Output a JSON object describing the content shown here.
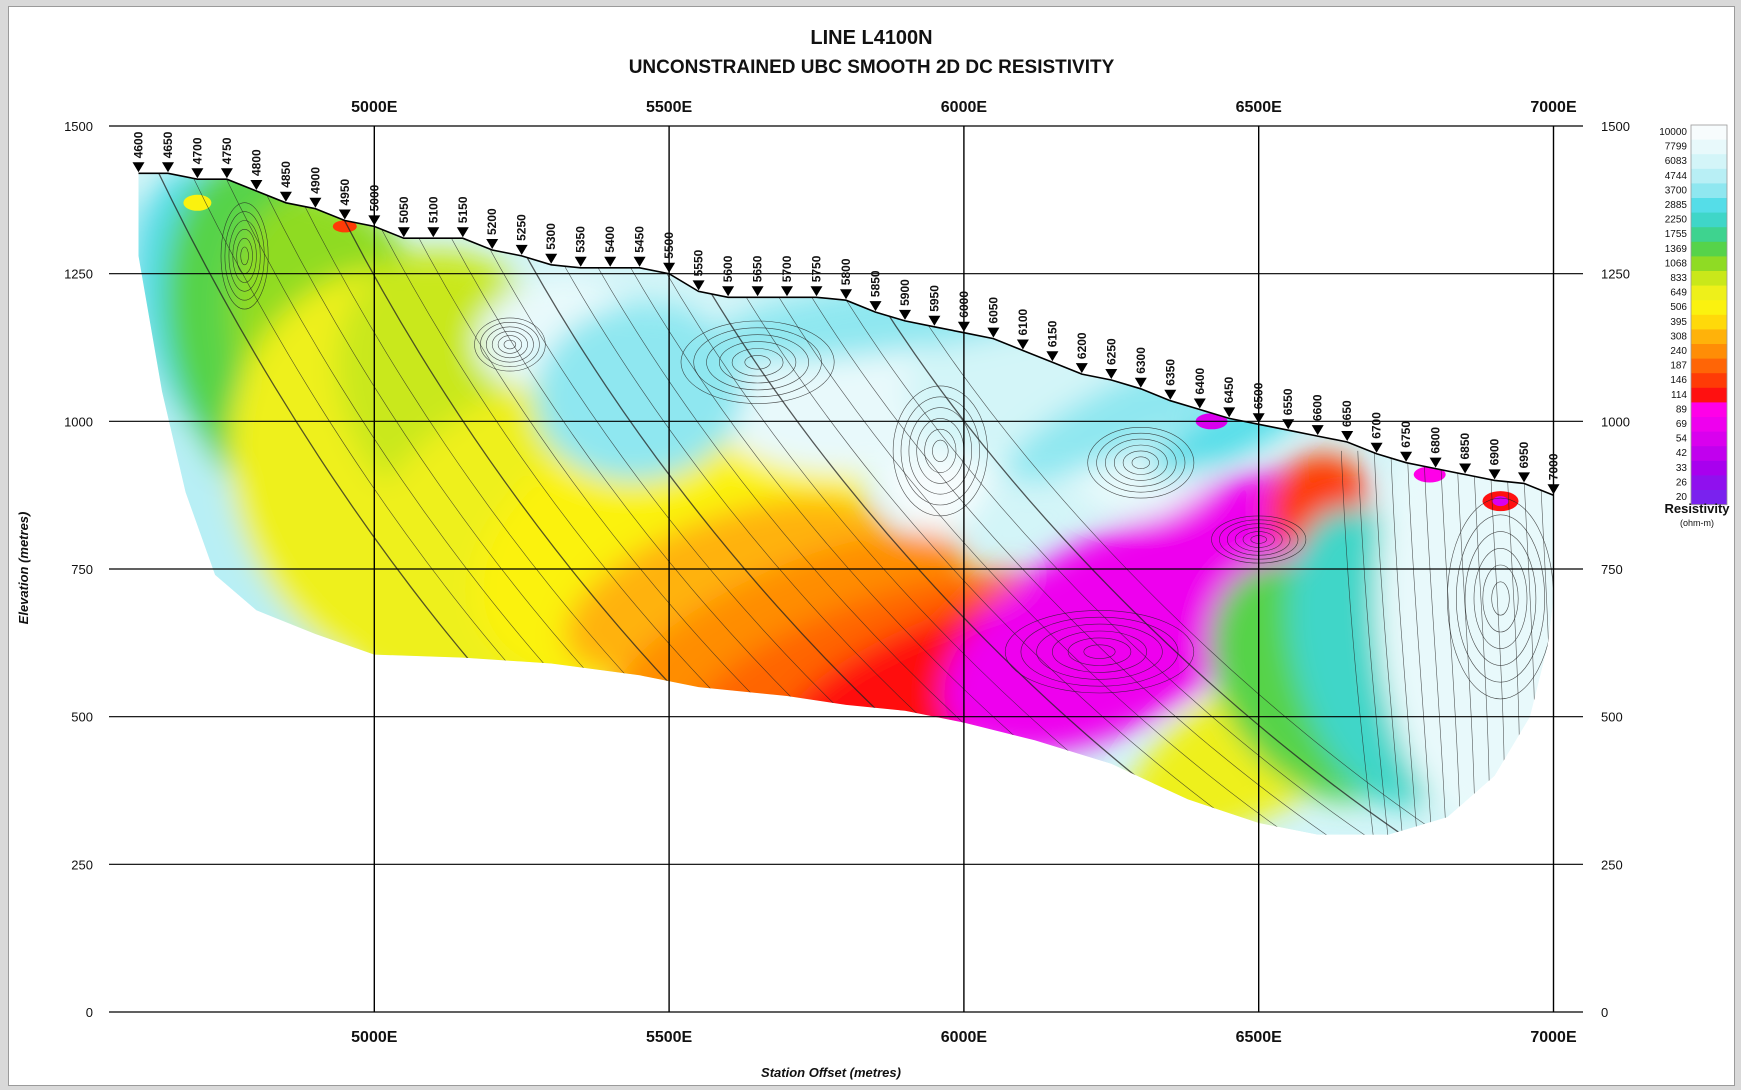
{
  "chart_data": {
    "type": "heatmap",
    "title": "LINE L4100N",
    "subtitle": "UNCONSTRAINED UBC SMOOTH 2D DC RESISTIVITY",
    "xlabel": "Station Offset (metres)",
    "ylabel": "Elevation (metres)",
    "xlim": [
      4550,
      7050
    ],
    "ylim": [
      0,
      1500
    ],
    "x_ticks": [
      {
        "value": 5000,
        "label": "5000E"
      },
      {
        "value": 5500,
        "label": "5500E"
      },
      {
        "value": 6000,
        "label": "6000E"
      },
      {
        "value": 6500,
        "label": "6500E"
      },
      {
        "value": 7000,
        "label": "7000E"
      }
    ],
    "y_ticks": [
      {
        "value": 0,
        "label": "0"
      },
      {
        "value": 250,
        "label": "250"
      },
      {
        "value": 500,
        "label": "500"
      },
      {
        "value": 750,
        "label": "750"
      },
      {
        "value": 1000,
        "label": "1000"
      },
      {
        "value": 1250,
        "label": "1250"
      },
      {
        "value": 1500,
        "label": "1500"
      }
    ],
    "grid": true,
    "colorbar": {
      "title": "Resistivity",
      "units": "(ohm-m)",
      "position": "right",
      "levels": [
        "10000",
        "7799",
        "6083",
        "4744",
        "3700",
        "2885",
        "2250",
        "1755",
        "1369",
        "1068",
        "833",
        "649",
        "506",
        "395",
        "308",
        "240",
        "187",
        "146",
        "114",
        "89",
        "69",
        "54",
        "42",
        "33",
        "26",
        "20"
      ],
      "colors": [
        "#f7fcfd",
        "#e8f9fb",
        "#d3f5f8",
        "#b8eff5",
        "#8fe7f0",
        "#55dde8",
        "#3fd6c8",
        "#3ed38f",
        "#56d34a",
        "#8fdb24",
        "#c9e81a",
        "#eef01a",
        "#fbf20f",
        "#ffd90a",
        "#ffb20a",
        "#ff8d06",
        "#ff6506",
        "#ff3b06",
        "#ff1010",
        "#ff00e8",
        "#ee00ee",
        "#d900ee",
        "#c100ee",
        "#a800ee",
        "#9010ee",
        "#7a22ee"
      ]
    },
    "stations": [
      4600,
      4650,
      4700,
      4750,
      4800,
      4850,
      4900,
      4950,
      5000,
      5050,
      5100,
      5150,
      5200,
      5250,
      5300,
      5350,
      5400,
      5450,
      5500,
      5550,
      5600,
      5650,
      5700,
      5750,
      5800,
      5850,
      5900,
      5950,
      6000,
      6050,
      6100,
      6150,
      6200,
      6250,
      6300,
      6350,
      6400,
      6450,
      6500,
      6550,
      6600,
      6650,
      6700,
      6750,
      6800,
      6850,
      6900,
      6950,
      7000
    ],
    "topography": [
      [
        4600,
        1420
      ],
      [
        4650,
        1420
      ],
      [
        4700,
        1410
      ],
      [
        4750,
        1410
      ],
      [
        4800,
        1390
      ],
      [
        4850,
        1370
      ],
      [
        4900,
        1360
      ],
      [
        4950,
        1340
      ],
      [
        5000,
        1330
      ],
      [
        5050,
        1310
      ],
      [
        5100,
        1310
      ],
      [
        5150,
        1310
      ],
      [
        5200,
        1290
      ],
      [
        5250,
        1280
      ],
      [
        5300,
        1265
      ],
      [
        5350,
        1260
      ],
      [
        5400,
        1260
      ],
      [
        5450,
        1260
      ],
      [
        5500,
        1250
      ],
      [
        5550,
        1220
      ],
      [
        5600,
        1210
      ],
      [
        5650,
        1210
      ],
      [
        5700,
        1210
      ],
      [
        5750,
        1210
      ],
      [
        5800,
        1205
      ],
      [
        5850,
        1185
      ],
      [
        5900,
        1170
      ],
      [
        5950,
        1160
      ],
      [
        6000,
        1150
      ],
      [
        6050,
        1140
      ],
      [
        6100,
        1120
      ],
      [
        6150,
        1100
      ],
      [
        6200,
        1080
      ],
      [
        6250,
        1070
      ],
      [
        6300,
        1055
      ],
      [
        6350,
        1035
      ],
      [
        6400,
        1020
      ],
      [
        6450,
        1005
      ],
      [
        6500,
        995
      ],
      [
        6550,
        985
      ],
      [
        6600,
        975
      ],
      [
        6650,
        965
      ],
      [
        6700,
        945
      ],
      [
        6750,
        930
      ],
      [
        6800,
        920
      ],
      [
        6850,
        910
      ],
      [
        6900,
        900
      ],
      [
        6950,
        895
      ],
      [
        7000,
        875
      ]
    ]
  }
}
